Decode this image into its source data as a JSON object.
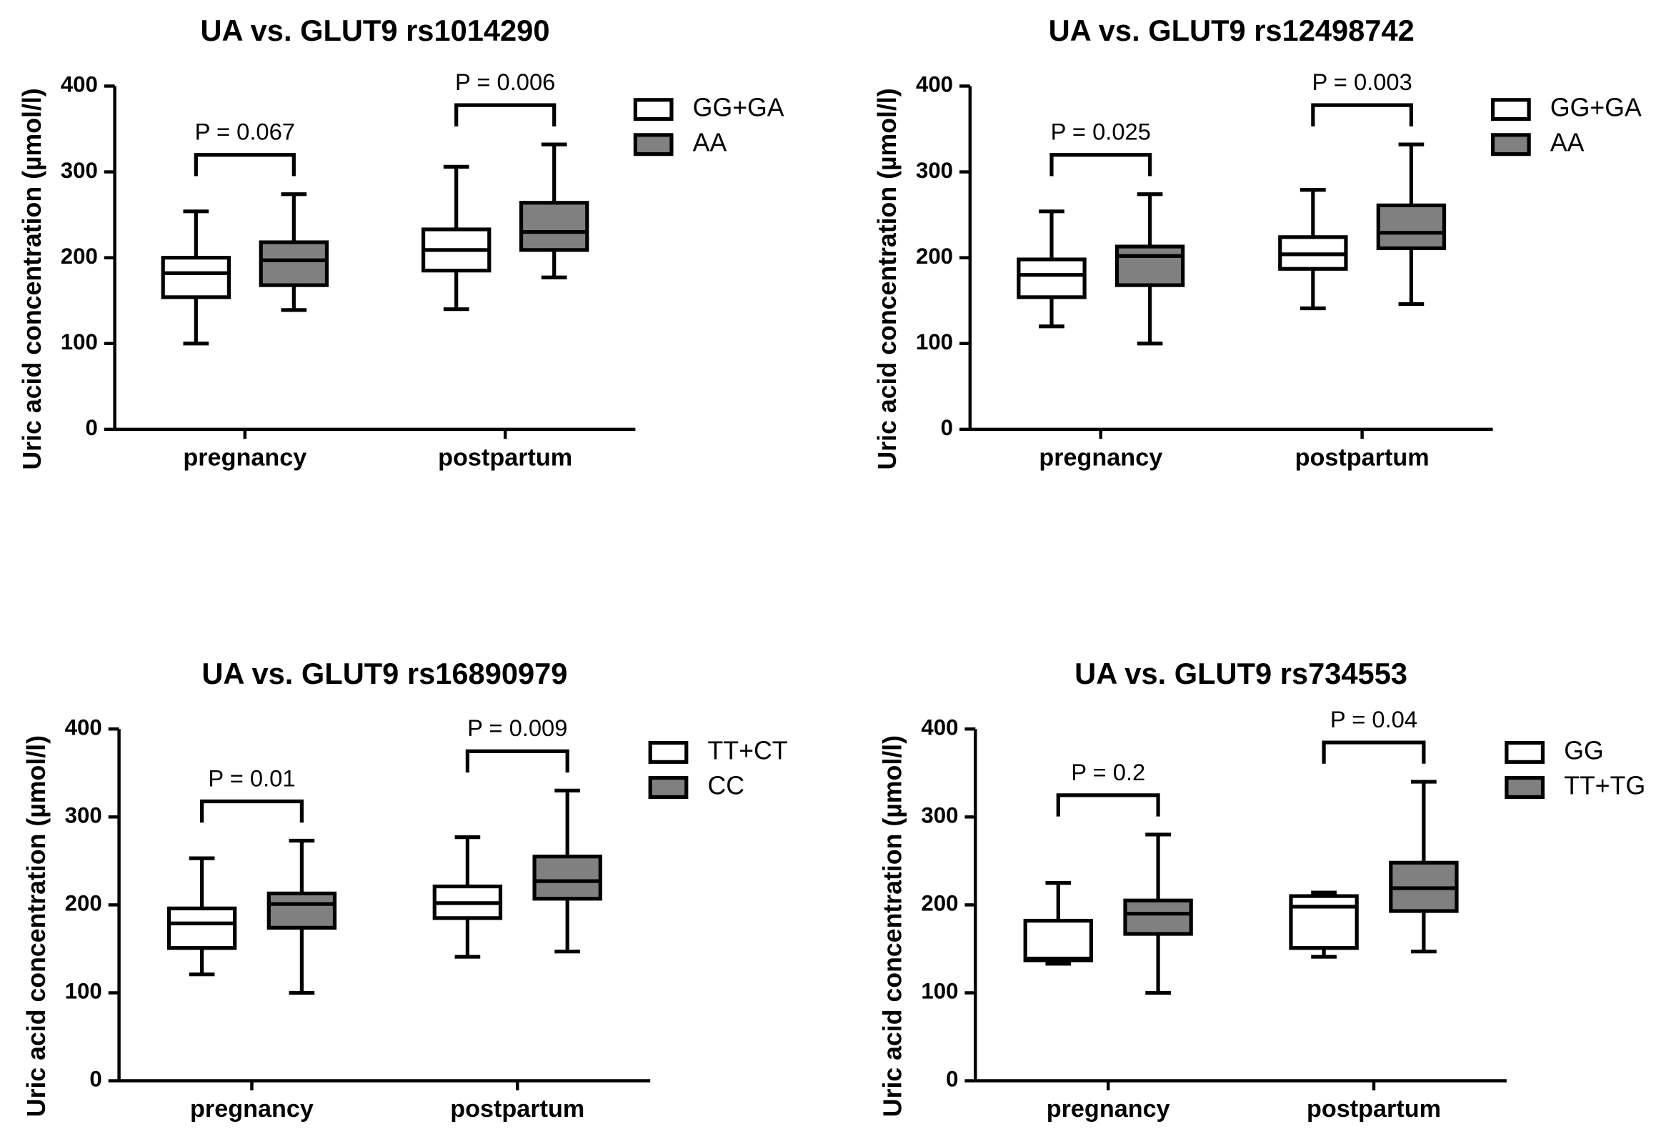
{
  "chart_data": [
    {
      "type": "box",
      "title": "UA vs. GLUT9 rs1014290",
      "ylabel": "Uric acid concentration (µmol/l)",
      "categories": [
        "pregnancy",
        "postpartum"
      ],
      "annotations": [
        "P = 0.067",
        "P = 0.006"
      ],
      "ylim": [
        0,
        400
      ],
      "yticks": [
        0,
        100,
        200,
        300,
        400
      ],
      "series": [
        {
          "name": "GG+GA",
          "color": "#ffffff",
          "boxes": [
            {
              "min": 100,
              "q1": 154,
              "median": 182,
              "q3": 200,
              "max": 254
            },
            {
              "min": 140,
              "q1": 185,
              "median": 209,
              "q3": 233,
              "max": 306
            }
          ]
        },
        {
          "name": "AA",
          "color": "#808080",
          "boxes": [
            {
              "min": 139,
              "q1": 168,
              "median": 197,
              "q3": 218,
              "max": 274
            },
            {
              "min": 177,
              "q1": 209,
              "median": 230,
              "q3": 264,
              "max": 332
            }
          ]
        }
      ]
    },
    {
      "type": "box",
      "title": "UA vs. GLUT9 rs12498742",
      "ylabel": "Uric acid concentration (µmol/l)",
      "categories": [
        "pregnancy",
        "postpartum"
      ],
      "annotations": [
        "P = 0.025",
        "P = 0.003"
      ],
      "ylim": [
        0,
        400
      ],
      "yticks": [
        0,
        100,
        200,
        300,
        400
      ],
      "series": [
        {
          "name": "GG+GA",
          "color": "#ffffff",
          "boxes": [
            {
              "min": 120,
              "q1": 154,
              "median": 180,
              "q3": 198,
              "max": 254
            },
            {
              "min": 141,
              "q1": 187,
              "median": 204,
              "q3": 224,
              "max": 279
            }
          ]
        },
        {
          "name": "AA",
          "color": "#808080",
          "boxes": [
            {
              "min": 100,
              "q1": 168,
              "median": 202,
              "q3": 213,
              "max": 274
            },
            {
              "min": 146,
              "q1": 211,
              "median": 229,
              "q3": 261,
              "max": 332
            }
          ]
        }
      ]
    },
    {
      "type": "box",
      "title": "UA vs. GLUT9 rs16890979",
      "ylabel": "Uric acid concentration (µmol/l)",
      "categories": [
        "pregnancy",
        "postpartum"
      ],
      "annotations": [
        "P = 0.01",
        "P = 0.009"
      ],
      "ylim": [
        0,
        400
      ],
      "yticks": [
        0,
        100,
        200,
        300,
        400
      ],
      "series": [
        {
          "name": "TT+CT",
          "color": "#ffffff",
          "boxes": [
            {
              "min": 121,
              "q1": 151,
              "median": 179,
              "q3": 196,
              "max": 253
            },
            {
              "min": 141,
              "q1": 185,
              "median": 202,
              "q3": 221,
              "max": 277
            }
          ]
        },
        {
          "name": "CC",
          "color": "#808080",
          "boxes": [
            {
              "min": 100,
              "q1": 174,
              "median": 201,
              "q3": 213,
              "max": 273
            },
            {
              "min": 147,
              "q1": 207,
              "median": 227,
              "q3": 255,
              "max": 330
            }
          ]
        }
      ]
    },
    {
      "type": "box",
      "title": "UA vs. GLUT9 rs734553",
      "ylabel": "Uric acid concentration (µmol/l)",
      "categories": [
        "pregnancy",
        "postpartum"
      ],
      "annotations": [
        "P = 0.2",
        "P = 0.04"
      ],
      "ylim": [
        0,
        400
      ],
      "yticks": [
        0,
        100,
        200,
        300,
        400
      ],
      "series": [
        {
          "name": "GG",
          "color": "#ffffff",
          "boxes": [
            {
              "min": 133,
              "q1": 137,
              "median": 139,
              "q3": 182,
              "max": 225
            },
            {
              "min": 141,
              "q1": 151,
              "median": 198,
              "q3": 210,
              "max": 214
            }
          ]
        },
        {
          "name": "TT+TG",
          "color": "#808080",
          "boxes": [
            {
              "min": 100,
              "q1": 167,
              "median": 190,
              "q3": 205,
              "max": 280
            },
            {
              "min": 147,
              "q1": 193,
              "median": 219,
              "q3": 248,
              "max": 340
            }
          ]
        }
      ]
    }
  ]
}
